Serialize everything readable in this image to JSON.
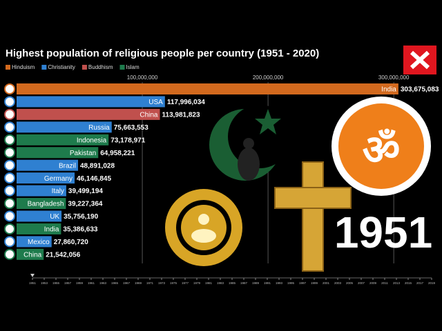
{
  "chart_data": {
    "type": "bar",
    "title": "Highest population of religious people per country (1951 - 2020)",
    "categories": [
      "India",
      "USA",
      "China",
      "Russia",
      "Indonesia",
      "Pakistan",
      "Brazil",
      "Germany",
      "Italy",
      "Bangladesh",
      "UK",
      "India",
      "Mexico",
      "China"
    ],
    "series": [
      {
        "name": "Hinduism",
        "color": "#d2691e",
        "values": [
          303675083,
          null,
          null,
          null,
          null,
          null,
          null,
          null,
          null,
          null,
          null,
          null,
          null,
          null
        ],
        "value_labels": [
          "303,675,083",
          null,
          null,
          null,
          null,
          null,
          null,
          null,
          null,
          null,
          null,
          null,
          null,
          null
        ]
      },
      {
        "name": "Christianity",
        "color": "#2f80d1",
        "values": [
          null,
          117996034,
          null,
          75663553,
          null,
          null,
          48891028,
          46146845,
          39499194,
          null,
          35756190,
          null,
          27860720,
          null
        ],
        "value_labels": [
          null,
          "117,996,034",
          null,
          "75,663,553",
          null,
          null,
          "48,891,028",
          "46,146,845",
          "39,499,194",
          null,
          "35,756,190",
          null,
          "27,860,720",
          null
        ]
      },
      {
        "name": "Buddhism",
        "color": "#c0504d",
        "values": [
          null,
          null,
          113981823,
          null,
          null,
          null,
          null,
          null,
          null,
          null,
          null,
          null,
          null,
          null
        ],
        "value_labels": [
          null,
          null,
          "113,981,823",
          null,
          null,
          null,
          null,
          null,
          null,
          null,
          null,
          null,
          null,
          null
        ]
      },
      {
        "name": "Islam",
        "color": "#1e7b4c",
        "values": [
          null,
          null,
          null,
          null,
          73178971,
          64958221,
          null,
          null,
          null,
          39227364,
          null,
          35386633,
          null,
          21542056
        ],
        "value_labels": [
          null,
          null,
          null,
          null,
          "73,178,971",
          "64,958,221",
          null,
          null,
          null,
          "39,227,364",
          null,
          "35,386,633",
          null,
          "21,542,056"
        ]
      }
    ],
    "xlim": [
      0,
      340000000
    ],
    "xticks": [
      {
        "value": 100000000,
        "label": "100,000,000"
      },
      {
        "value": 200000000,
        "label": "200,000,000"
      },
      {
        "value": 300000000,
        "label": "300,000,000"
      }
    ],
    "grid": true,
    "year_label": 1951,
    "timeline_lim": [
      1951,
      2019
    ],
    "timeline_ticks": [
      1951,
      1953,
      1955,
      1957,
      1959,
      1961,
      1963,
      1965,
      1967,
      1969,
      1971,
      1973,
      1975,
      1977,
      1979,
      1981,
      1983,
      1985,
      1987,
      1989,
      1991,
      1993,
      1995,
      1997,
      1999,
      2001,
      2003,
      2005,
      2007,
      2009,
      2011,
      2013,
      2015,
      2017,
      2019
    ]
  }
}
